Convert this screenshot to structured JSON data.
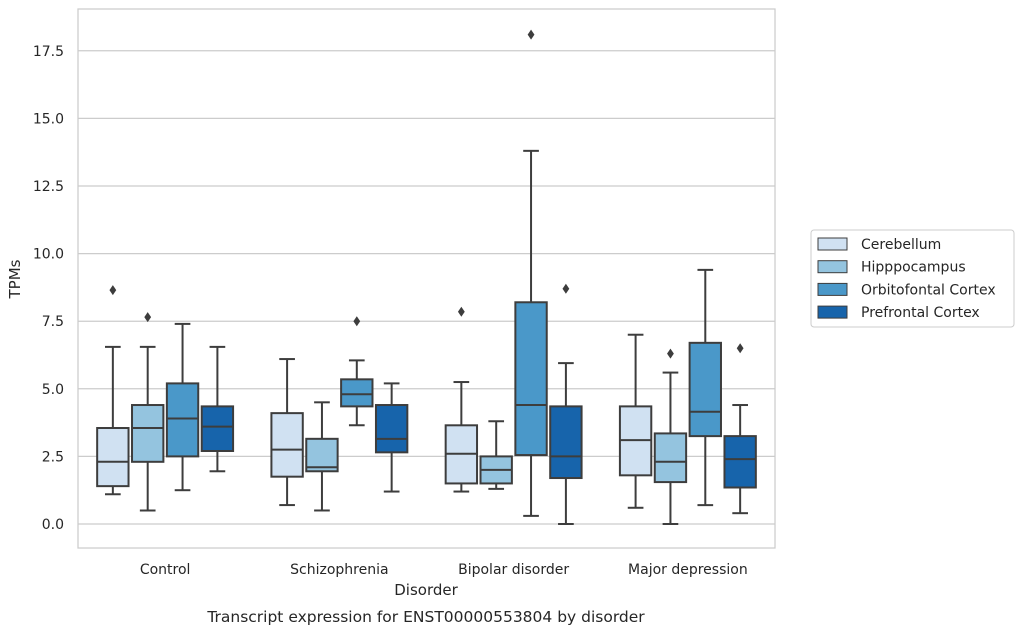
{
  "chart_data": {
    "type": "box",
    "title": "",
    "caption": "Transcript expression for ENST00000553804 by disorder",
    "xlabel": "Disorder",
    "ylabel": "TPMs",
    "ylim": [
      -0.85,
      19.0
    ],
    "yticks": [
      0.0,
      2.5,
      5.0,
      7.5,
      10.0,
      12.5,
      15.0,
      17.5
    ],
    "ytick_labels": [
      "0.0",
      "2.5",
      "5.0",
      "7.5",
      "10.0",
      "12.5",
      "15.0",
      "17.5"
    ],
    "grid": "horizontal",
    "legend_position": "right",
    "categories": [
      "Control",
      "Schizophrenia",
      "Bipolar disorder",
      "Major depression"
    ],
    "series": [
      {
        "name": "Cerebellum",
        "color": "#d0e1f2",
        "boxes": [
          {
            "whisker_low": 1.1,
            "q1": 1.4,
            "median": 2.3,
            "q3": 3.55,
            "whisker_high": 6.55,
            "outliers": [
              8.65
            ]
          },
          {
            "whisker_low": 0.7,
            "q1": 1.75,
            "median": 2.75,
            "q3": 4.1,
            "whisker_high": 6.1,
            "outliers": []
          },
          {
            "whisker_low": 1.2,
            "q1": 1.5,
            "median": 2.6,
            "q3": 3.65,
            "whisker_high": 5.25,
            "outliers": [
              7.85
            ]
          },
          {
            "whisker_low": 0.6,
            "q1": 1.8,
            "median": 3.1,
            "q3": 4.35,
            "whisker_high": 7.0,
            "outliers": []
          }
        ]
      },
      {
        "name": "Hipppocampus",
        "color": "#94c4df",
        "boxes": [
          {
            "whisker_low": 0.5,
            "q1": 2.3,
            "median": 3.55,
            "q3": 4.4,
            "whisker_high": 6.55,
            "outliers": [
              7.65
            ]
          },
          {
            "whisker_low": 0.5,
            "q1": 1.95,
            "median": 2.1,
            "q3": 3.15,
            "whisker_high": 4.5,
            "outliers": []
          },
          {
            "whisker_low": 1.3,
            "q1": 1.5,
            "median": 2.0,
            "q3": 2.5,
            "whisker_high": 3.8,
            "outliers": []
          },
          {
            "whisker_low": 0.0,
            "q1": 1.55,
            "median": 2.3,
            "q3": 3.35,
            "whisker_high": 5.6,
            "outliers": [
              6.3
            ]
          }
        ]
      },
      {
        "name": "Orbitofontal Cortex",
        "color": "#4a98c9",
        "boxes": [
          {
            "whisker_low": 1.25,
            "q1": 2.5,
            "median": 3.9,
            "q3": 5.2,
            "whisker_high": 7.4,
            "outliers": []
          },
          {
            "whisker_low": 3.65,
            "q1": 4.35,
            "median": 4.8,
            "q3": 5.35,
            "whisker_high": 6.05,
            "outliers": [
              7.5
            ]
          },
          {
            "whisker_low": 0.3,
            "q1": 2.55,
            "median": 4.4,
            "q3": 8.2,
            "whisker_high": 13.8,
            "outliers": [
              18.1
            ]
          },
          {
            "whisker_low": 0.7,
            "q1": 3.25,
            "median": 4.15,
            "q3": 6.7,
            "whisker_high": 9.4,
            "outliers": []
          }
        ]
      },
      {
        "name": "Prefrontal Cortex",
        "color": "#1764ab",
        "boxes": [
          {
            "whisker_low": 1.95,
            "q1": 2.7,
            "median": 3.6,
            "q3": 4.35,
            "whisker_high": 6.55,
            "outliers": []
          },
          {
            "whisker_low": 1.2,
            "q1": 2.65,
            "median": 3.15,
            "q3": 4.4,
            "whisker_high": 5.2,
            "outliers": []
          },
          {
            "whisker_low": 0.0,
            "q1": 1.7,
            "median": 2.5,
            "q3": 4.35,
            "whisker_high": 5.95,
            "outliers": [
              8.7
            ]
          },
          {
            "whisker_low": 0.4,
            "q1": 1.35,
            "median": 2.4,
            "q3": 3.25,
            "whisker_high": 4.4,
            "outliers": [
              6.5
            ]
          }
        ]
      }
    ]
  }
}
